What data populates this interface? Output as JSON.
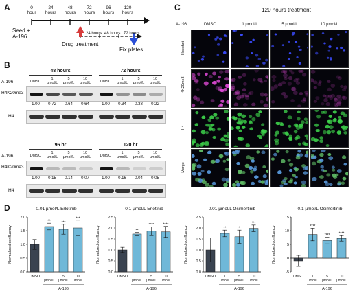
{
  "panel_a": {
    "label": "A",
    "timepoints": [
      {
        "value": "0",
        "unit": "hour"
      },
      {
        "value": "24",
        "unit": "hours"
      },
      {
        "value": "48",
        "unit": "hours"
      },
      {
        "value": "72",
        "unit": "hours"
      },
      {
        "value": "96",
        "unit": "hours"
      },
      {
        "value": "120",
        "unit": "hours"
      }
    ],
    "seed_line1": "Seed +",
    "seed_line2": "A-196",
    "drug_treatment": "Drug treatment",
    "sub_labels": [
      "24 hours",
      "48 hours",
      "72 hours"
    ],
    "fix_plates": "Fix plates",
    "arrow_red": "#d63a3a",
    "arrow_blue": "#2b4fd6"
  },
  "panel_b": {
    "label": "B",
    "a196_label": "A-196",
    "conditions": [
      "DMSO",
      "1 µmol/L",
      "5 µmol/L",
      "10 µmol/L"
    ],
    "blocks": [
      {
        "times": [
          "48 hours",
          "72 hours"
        ],
        "quant": [
          "1.00",
          "0.72",
          "0.64",
          "0.64",
          "1.00",
          "0.34",
          "0.38",
          "0.22"
        ],
        "intensity": [
          1.0,
          0.72,
          0.64,
          0.64,
          1.0,
          0.34,
          0.38,
          0.22
        ]
      },
      {
        "times": [
          "96 hr",
          "120 hr"
        ],
        "quant": [
          "1.00",
          "0.15",
          "0.14",
          "0.07",
          "1.00",
          "0.16",
          "0.04",
          "0.05"
        ],
        "intensity": [
          1.0,
          0.15,
          0.14,
          0.07,
          1.0,
          0.16,
          0.04,
          0.05
        ]
      }
    ],
    "row_labels": [
      "H4K20me3",
      "H4"
    ]
  },
  "panel_c": {
    "label": "C",
    "title": "120 hours treatment",
    "a196_label": "A-196",
    "columns": [
      "DMSO",
      "1 µmol/L",
      "5 µmol/L",
      "10 µmol/L"
    ],
    "rows": [
      "Hoechst",
      "H4K20me3",
      "H4",
      "Merge"
    ],
    "colors": [
      "#3b4cff",
      "#e04ad8",
      "#3dd04a",
      "#7fb8e0"
    ],
    "magenta_level": [
      1.0,
      0.35,
      0.2,
      0.15
    ]
  },
  "panel_d": {
    "label": "D",
    "charts": [
      {
        "title": "0.01 µmol/L Erlotinib",
        "ylabel": "Normalized confluency",
        "ylim": [
          0,
          2.0
        ],
        "ticks": [
          "0.0",
          "0.5",
          "1.0",
          "1.5",
          "2.0"
        ],
        "categories": [
          "DMSO",
          "1 µmol/L",
          "5 µmol/L",
          "10 µmol/L"
        ],
        "values": [
          1.0,
          1.65,
          1.55,
          1.6
        ],
        "errors": [
          0.18,
          0.12,
          0.18,
          0.28
        ],
        "sig": [
          "",
          "****",
          "***",
          "***"
        ],
        "group_label": "A-196"
      },
      {
        "title": "0.1 µmol/L Erlotinib",
        "ylabel": "Normalized confluency",
        "ylim": [
          0,
          2.5
        ],
        "ticks": [
          "0.0",
          "0.5",
          "1.0",
          "1.5",
          "2.0",
          "2.5"
        ],
        "categories": [
          "DMSO",
          "1 µmol/L",
          "5 µmol/L",
          "10 µmol/L"
        ],
        "values": [
          1.0,
          1.72,
          1.85,
          1.82
        ],
        "errors": [
          0.12,
          0.08,
          0.2,
          0.25
        ],
        "sig": [
          "",
          "****",
          "****",
          "****"
        ],
        "group_label": "A-196"
      },
      {
        "title": "0.01 µmol/L Osimertinib",
        "ylabel": "Normalized confluency",
        "ylim": [
          0,
          2.5
        ],
        "ticks": [
          "0.0",
          "0.5",
          "1.0",
          "1.5",
          "2.0",
          "2.5"
        ],
        "categories": [
          "DMSO",
          "1 µmol/L",
          "5 µmol/L",
          "10 µmol/L"
        ],
        "values": [
          1.0,
          1.75,
          1.6,
          1.98
        ],
        "errors": [
          0.55,
          0.15,
          0.3,
          0.15
        ],
        "sig": [
          "",
          "**",
          "*",
          "***"
        ],
        "group_label": "A-196"
      },
      {
        "title": "0.1 µmol/L Osimertinib",
        "ylabel": "Normalized confluency",
        "ylim": [
          -5,
          15
        ],
        "ticks": [
          "-5",
          "0",
          "5",
          "10",
          "15"
        ],
        "categories": [
          "DMSO",
          "1 µmol/L",
          "5 µmol/L",
          "10 µmol/L"
        ],
        "values": [
          -1.0,
          8.6,
          6.4,
          7.2
        ],
        "errors": [
          2.0,
          2.3,
          1.2,
          1.0
        ],
        "sig": [
          "",
          "****",
          "****",
          "****"
        ],
        "group_label": "A-196"
      }
    ],
    "colors": {
      "dmso": "#3a4350",
      "treated": "#6fb8d8"
    }
  }
}
